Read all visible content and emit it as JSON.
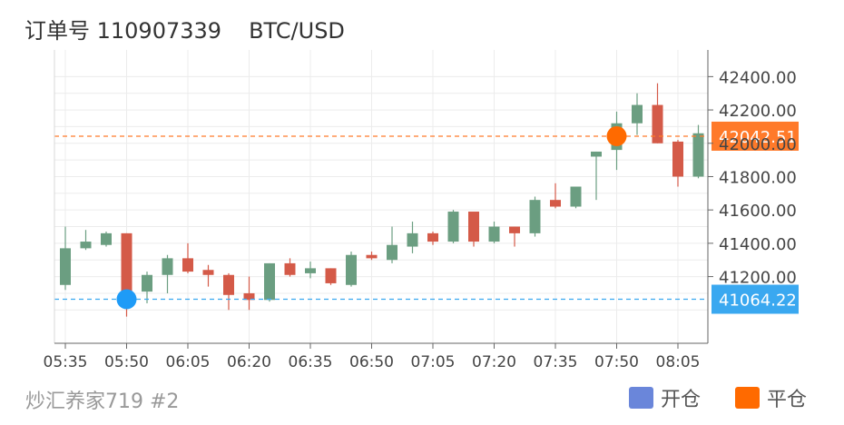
{
  "header": {
    "order_label": "订单号 110907339",
    "symbol": "BTC/USD"
  },
  "footer": {
    "watermark": "炒汇养家719 #2"
  },
  "legend": [
    {
      "label": "开仓",
      "color": "#6a86da"
    },
    {
      "label": "平仓",
      "color": "#ff6a00"
    }
  ],
  "chart_data": {
    "type": "candlestick",
    "x_ticks": [
      "05:35",
      "05:50",
      "06:05",
      "06:20",
      "06:35",
      "06:50",
      "07:05",
      "07:20",
      "07:35",
      "07:50",
      "08:05"
    ],
    "y_ticks": [
      "41200.00",
      "41400.00",
      "41600.00",
      "41800.00",
      "42000.00",
      "42200.00",
      "42400.00"
    ],
    "ylim": [
      40800,
      42560
    ],
    "up_color": "#6b9e81",
    "down_color": "#d45a48",
    "candles": [
      {
        "t": "05:35",
        "o": 41150,
        "h": 41500,
        "l": 41120,
        "c": 41370
      },
      {
        "t": "05:40",
        "o": 41370,
        "h": 41480,
        "l": 41360,
        "c": 41410
      },
      {
        "t": "05:45",
        "o": 41390,
        "h": 41470,
        "l": 41380,
        "c": 41460
      },
      {
        "t": "05:50",
        "o": 41460,
        "h": 41460,
        "l": 40960,
        "c": 41100
      },
      {
        "t": "05:55",
        "o": 41110,
        "h": 41230,
        "l": 41040,
        "c": 41210
      },
      {
        "t": "06:00",
        "o": 41210,
        "h": 41330,
        "l": 41100,
        "c": 41310
      },
      {
        "t": "06:05",
        "o": 41310,
        "h": 41400,
        "l": 41220,
        "c": 41230
      },
      {
        "t": "06:10",
        "o": 41240,
        "h": 41270,
        "l": 41140,
        "c": 41210
      },
      {
        "t": "06:15",
        "o": 41210,
        "h": 41220,
        "l": 41000,
        "c": 41090
      },
      {
        "t": "06:20",
        "o": 41100,
        "h": 41200,
        "l": 41000,
        "c": 41060
      },
      {
        "t": "06:25",
        "o": 41060,
        "h": 41280,
        "l": 41050,
        "c": 41280
      },
      {
        "t": "06:30",
        "o": 41280,
        "h": 41310,
        "l": 41200,
        "c": 41210
      },
      {
        "t": "06:35",
        "o": 41220,
        "h": 41290,
        "l": 41190,
        "c": 41250
      },
      {
        "t": "06:40",
        "o": 41250,
        "h": 41250,
        "l": 41150,
        "c": 41160
      },
      {
        "t": "06:45",
        "o": 41150,
        "h": 41350,
        "l": 41140,
        "c": 41330
      },
      {
        "t": "06:50",
        "o": 41330,
        "h": 41350,
        "l": 41300,
        "c": 41310
      },
      {
        "t": "06:55",
        "o": 41300,
        "h": 41500,
        "l": 41280,
        "c": 41390
      },
      {
        "t": "07:00",
        "o": 41380,
        "h": 41530,
        "l": 41340,
        "c": 41460
      },
      {
        "t": "07:05",
        "o": 41460,
        "h": 41470,
        "l": 41390,
        "c": 41410
      },
      {
        "t": "07:10",
        "o": 41410,
        "h": 41600,
        "l": 41400,
        "c": 41590
      },
      {
        "t": "07:15",
        "o": 41590,
        "h": 41590,
        "l": 41380,
        "c": 41410
      },
      {
        "t": "07:20",
        "o": 41410,
        "h": 41530,
        "l": 41400,
        "c": 41500
      },
      {
        "t": "07:25",
        "o": 41500,
        "h": 41500,
        "l": 41380,
        "c": 41460
      },
      {
        "t": "07:30",
        "o": 41460,
        "h": 41680,
        "l": 41440,
        "c": 41660
      },
      {
        "t": "07:35",
        "o": 41660,
        "h": 41760,
        "l": 41610,
        "c": 41620
      },
      {
        "t": "07:40",
        "o": 41620,
        "h": 41740,
        "l": 41610,
        "c": 41740
      },
      {
        "t": "07:45",
        "o": 41920,
        "h": 41950,
        "l": 41660,
        "c": 41950
      },
      {
        "t": "07:50",
        "o": 41960,
        "h": 42190,
        "l": 41840,
        "c": 42120
      },
      {
        "t": "07:55",
        "o": 42120,
        "h": 42300,
        "l": 42050,
        "c": 42230
      },
      {
        "t": "08:00",
        "o": 42230,
        "h": 42360,
        "l": 42000,
        "c": 42000
      },
      {
        "t": "08:05",
        "o": 42010,
        "h": 42020,
        "l": 41740,
        "c": 41800
      },
      {
        "t": "08:10",
        "o": 41800,
        "h": 42110,
        "l": 41790,
        "c": 42060
      }
    ],
    "open_marker": {
      "t": "05:50",
      "price": 41064.22,
      "color": "#1e9bf7"
    },
    "close_marker": {
      "t": "07:50",
      "price": 42042.51,
      "color": "#ff6a00"
    },
    "open_line": {
      "price": 41064.22,
      "label": "41064.22",
      "color": "#3aa8f0"
    },
    "close_line": {
      "price": 42042.51,
      "label": "42042.51",
      "color": "#ff7a2a"
    }
  }
}
